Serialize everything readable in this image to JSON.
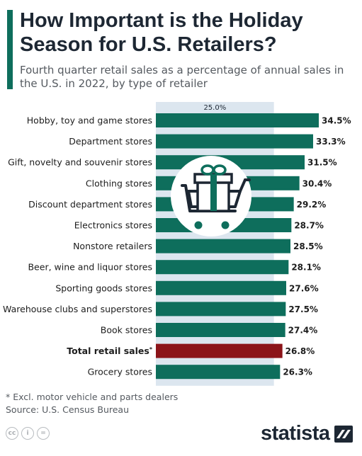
{
  "title": "How Important is the Holiday Season for U.S. Retailers?",
  "subtitle": "Fourth quarter retail sales as a percentage of annual sales in the U.S. in 2022, by type of retailer",
  "footnote": "* Excl. motor vehicle and parts dealers",
  "source": "Source: U.S. Census Bureau",
  "brand": "statista",
  "colors": {
    "bar": "#0e6e5c",
    "highlight": "#8c1419",
    "band": "#dce6ef",
    "accent": "#0e6e5c"
  },
  "icons": [
    "shopping-cart-gift-icon",
    "cc-icon",
    "by-icon",
    "nd-icon",
    "statista-logo-icon"
  ],
  "chart_data": {
    "type": "bar",
    "orientation": "horizontal",
    "reference_label": "25.0%",
    "reference_value": 25.0,
    "categories": [
      "Hobby, toy and game stores",
      "Department stores",
      "Gift, novelty and souvenir stores",
      "Clothing stores",
      "Discount department stores",
      "Electronics stores",
      "Nonstore retailers",
      "Beer, wine and liquor stores",
      "Sporting goods stores",
      "Warehouse clubs and superstores",
      "Book stores",
      "Total retail sales",
      "Grocery stores"
    ],
    "values": [
      34.5,
      33.3,
      31.5,
      30.4,
      29.2,
      28.7,
      28.5,
      28.1,
      27.6,
      27.5,
      27.4,
      26.8,
      26.3
    ],
    "value_labels": [
      "34.5%",
      "33.3%",
      "31.5%",
      "30.4%",
      "29.2%",
      "28.7%",
      "28.5%",
      "28.1%",
      "27.6%",
      "27.5%",
      "27.4%",
      "26.8%",
      "26.3%"
    ],
    "category_suffix": [
      "",
      "",
      "",
      "",
      "",
      "",
      "",
      "",
      "",
      "",
      "",
      "*",
      ""
    ],
    "highlight_index": 11,
    "xlim": [
      0,
      36
    ]
  }
}
